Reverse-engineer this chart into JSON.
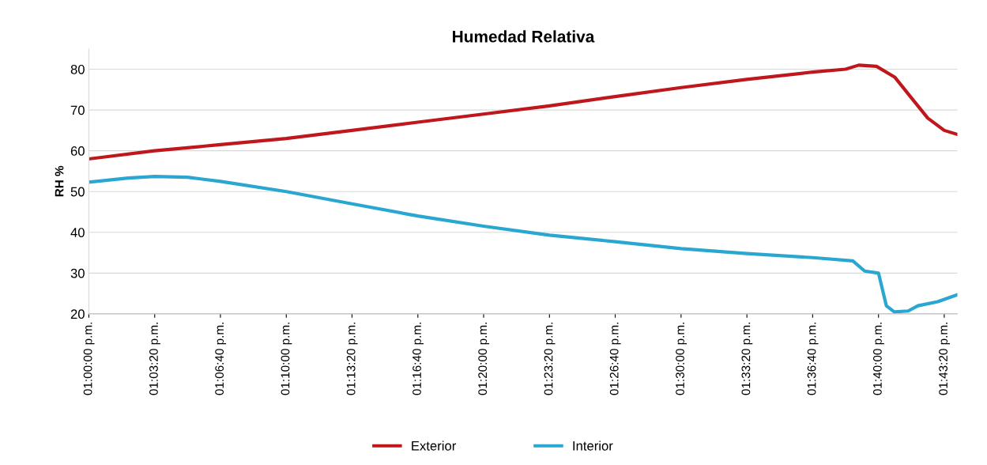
{
  "chart_data": {
    "type": "line",
    "title": "Humedad Relativa",
    "ylabel": "RH %",
    "ylim": [
      20,
      85
    ],
    "yticks": [
      20,
      30,
      40,
      50,
      60,
      70,
      80
    ],
    "xlim": [
      13.0,
      13.7333
    ],
    "xticks": [
      {
        "value": 13.0,
        "label": "01:00:00 p.m."
      },
      {
        "value": 13.0556,
        "label": "01:03:20 p.m."
      },
      {
        "value": 13.1111,
        "label": "01:06:40 p.m."
      },
      {
        "value": 13.1667,
        "label": "01:10:00 p.m."
      },
      {
        "value": 13.2222,
        "label": "01:13:20 p.m."
      },
      {
        "value": 13.2778,
        "label": "01:16:40 p.m."
      },
      {
        "value": 13.3333,
        "label": "01:20:00 p.m."
      },
      {
        "value": 13.3889,
        "label": "01:23:20 p.m."
      },
      {
        "value": 13.4444,
        "label": "01:26:40 p.m."
      },
      {
        "value": 13.5,
        "label": "01:30:00 p.m."
      },
      {
        "value": 13.5556,
        "label": "01:33:20 p.m."
      },
      {
        "value": 13.6111,
        "label": "01:36:40 p.m."
      },
      {
        "value": 13.6667,
        "label": "01:40:00 p.m."
      },
      {
        "value": 13.7222,
        "label": "01:43:20 p.m."
      }
    ],
    "grid": "y",
    "legend": "bottom",
    "marker": "none",
    "line_style": "solid",
    "series": [
      {
        "name": "Exterior",
        "color": "#c0171c",
        "x": [
          13.0,
          13.0556,
          13.1111,
          13.1667,
          13.2222,
          13.2778,
          13.3333,
          13.3889,
          13.4444,
          13.5,
          13.5556,
          13.6111,
          13.6389,
          13.65,
          13.665,
          13.6806,
          13.6944,
          13.7083,
          13.7222,
          13.7333
        ],
        "values": [
          58,
          60,
          61.5,
          63,
          65,
          67,
          69,
          71,
          73.3,
          75.5,
          77.5,
          79.3,
          80,
          81,
          80.7,
          78,
          73,
          68,
          65,
          64
        ]
      },
      {
        "name": "Interior",
        "color": "#2aa7d0",
        "x": [
          13.0,
          13.0333,
          13.0556,
          13.0833,
          13.1111,
          13.1667,
          13.2222,
          13.2778,
          13.3333,
          13.3889,
          13.4444,
          13.5,
          13.5556,
          13.6111,
          13.645,
          13.655,
          13.6667,
          13.6733,
          13.68,
          13.6917,
          13.7,
          13.7167,
          13.7333
        ],
        "values": [
          52.3,
          53.3,
          53.7,
          53.5,
          52.5,
          50,
          47,
          44,
          41.5,
          39.3,
          37.7,
          36,
          34.8,
          33.8,
          33,
          30.5,
          30,
          22,
          20.5,
          20.7,
          22,
          23,
          24.7
        ]
      }
    ]
  }
}
